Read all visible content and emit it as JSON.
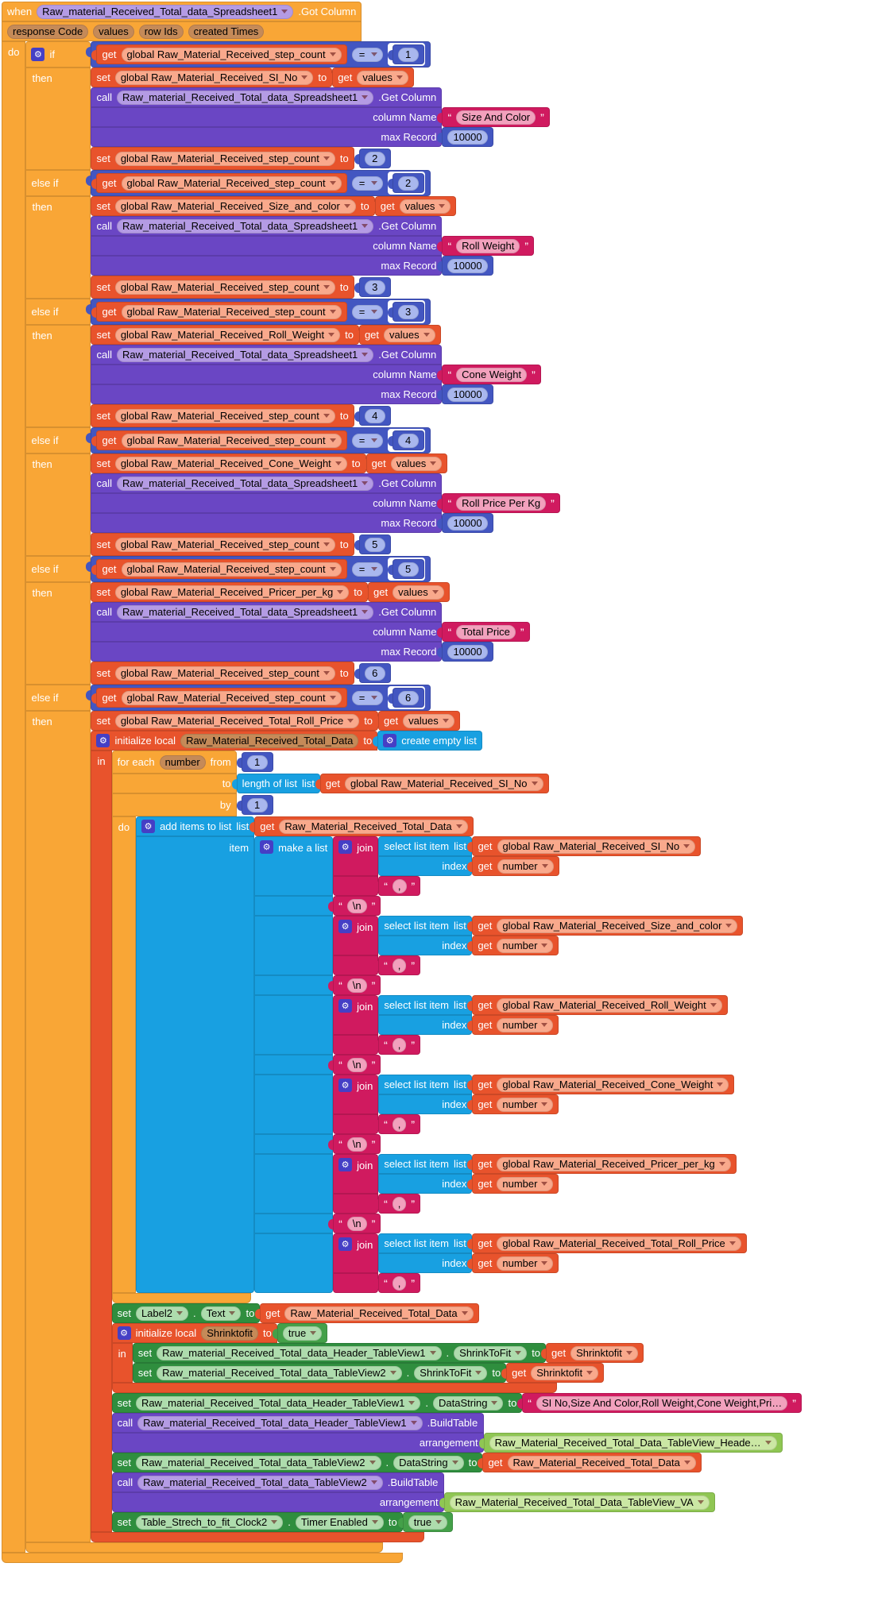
{
  "labels": {
    "when": "when",
    "do": "do",
    "if": "if",
    "else_if": "else if",
    "then": "then",
    "set": "set",
    "to": "to",
    "get": "get",
    "call": "call",
    "in": "in",
    "dot": ".",
    "true": "true",
    "init_local": "initialize local"
  },
  "event": {
    "component": "Raw_material_Received_Total_data_Spreadsheet1",
    "method": ".Got Column",
    "params": [
      "response Code",
      "values",
      "row Ids",
      "created Times"
    ]
  },
  "if_chain": {
    "step_var": "global Raw_Material_Received_step_count",
    "op": "=",
    "branches": [
      {
        "eq": "1",
        "set_var": "global Raw_Material_Received_SI_No",
        "get_value": "values",
        "call": {
          "component": "Raw_material_Received_Total_data_Spreadsheet1",
          "method": ".Get Column",
          "column_name_label": "column Name",
          "column_name": "Size And Color",
          "max_record_label": "max Record",
          "max_record": "10000"
        },
        "set_step": {
          "var": "global Raw_Material_Received_step_count",
          "to": "2"
        }
      },
      {
        "eq": "2",
        "set_var": "global Raw_Material_Received_Size_and_color",
        "get_value": "values",
        "call": {
          "component": "Raw_material_Received_Total_data_Spreadsheet1",
          "method": ".Get Column",
          "column_name_label": "column Name",
          "column_name": "Roll Weight",
          "max_record_label": "max Record",
          "max_record": "10000"
        },
        "set_step": {
          "var": "global Raw_Material_Received_step_count",
          "to": "3"
        }
      },
      {
        "eq": "3",
        "set_var": "global Raw_Material_Received_Roll_Weight",
        "get_value": "values",
        "call": {
          "component": "Raw_material_Received_Total_data_Spreadsheet1",
          "method": ".Get Column",
          "column_name_label": "column Name",
          "column_name": "Cone Weight",
          "max_record_label": "max Record",
          "max_record": "10000"
        },
        "set_step": {
          "var": "global Raw_Material_Received_step_count",
          "to": "4"
        }
      },
      {
        "eq": "4",
        "set_var": "global Raw_Material_Received_Cone_Weight",
        "get_value": "values",
        "call": {
          "component": "Raw_material_Received_Total_data_Spreadsheet1",
          "method": ".Get Column",
          "column_name_label": "column Name",
          "column_name": "Roll Price Per Kg",
          "max_record_label": "max Record",
          "max_record": "10000"
        },
        "set_step": {
          "var": "global Raw_Material_Received_step_count",
          "to": "5"
        }
      },
      {
        "eq": "5",
        "set_var": "global Raw_Material_Received_Pricer_per_kg",
        "get_value": "values",
        "call": {
          "component": "Raw_material_Received_Total_data_Spreadsheet1",
          "method": ".Get Column",
          "column_name_label": "column Name",
          "column_name": "Total Price",
          "max_record_label": "max Record",
          "max_record": "10000"
        },
        "set_step": {
          "var": "global Raw_Material_Received_step_count",
          "to": "6"
        }
      },
      {
        "eq": "6",
        "set_var": "global Raw_Material_Received_Total_Roll_Price",
        "get_value": "values"
      }
    ]
  },
  "final": {
    "local_name": "Raw_Material_Received_Total_Data",
    "create_empty_list": "create empty list",
    "for_each": "for each",
    "number": "number",
    "from": "from",
    "from_value": "1",
    "to": "to",
    "by": "by",
    "by_value": "1",
    "do": "do",
    "to_value_len": {
      "length_of_list": "length of list",
      "list": "list",
      "var": "global Raw_Material_Received_SI_No"
    },
    "add_items": {
      "label": "add items to list",
      "list": "list",
      "var": "Raw_Material_Received_Total_Data",
      "item": "item"
    },
    "make_a_list": "make a list",
    "join": "join",
    "select": {
      "label": "select list item",
      "list": "list",
      "index": "index",
      "index_var": "number"
    },
    "join_vars": [
      "global Raw_Material_Received_SI_No",
      "global Raw_Material_Received_Size_and_color",
      "global Raw_Material_Received_Roll_Weight",
      "global Raw_Material_Received_Cone_Weight",
      "global Raw_Material_Received_Pricer_per_kg",
      "global Raw_Material_Received_Total_Roll_Price"
    ],
    "comma": ",",
    "newline": "\\n"
  },
  "tail": [
    {
      "k": "prop",
      "component": "Label2",
      "prop": "Text",
      "val": {
        "k": "get",
        "v": "Raw_Material_Received_Total_Data"
      }
    },
    {
      "k": "init",
      "name": "Shrinktofit",
      "val": {
        "k": "true"
      },
      "body": [
        {
          "k": "prop",
          "component": "Raw_material_Received_Total_data_Header_TableView1",
          "prop": "ShrinkToFit",
          "val": {
            "k": "get",
            "v": "Shrinktofit"
          }
        },
        {
          "k": "prop",
          "component": "Raw_material_Received_Total_data_TableView2",
          "prop": "ShrinkToFit",
          "val": {
            "k": "get",
            "v": "Shrinktofit"
          }
        }
      ]
    },
    {
      "k": "prop",
      "component": "Raw_material_Received_Total_data_Header_TableView1",
      "prop": "DataString",
      "val": {
        "k": "text",
        "v": "SI No,Size And Color,Roll Weight,Cone Weight,Pri…"
      }
    },
    {
      "k": "callm",
      "component": "Raw_material_Received_Total_data_Header_TableView1",
      "method": ".BuildTable",
      "arg_label": "arrangement",
      "arg": {
        "k": "comp",
        "v": "Raw_Material_Received_Total_Data_TableView_Heade…"
      }
    },
    {
      "k": "prop",
      "component": "Raw_material_Received_Total_data_TableView2",
      "prop": "DataString",
      "val": {
        "k": "get",
        "v": "Raw_Material_Received_Total_Data"
      }
    },
    {
      "k": "callm",
      "component": "Raw_material_Received_Total_data_TableView2",
      "method": ".BuildTable",
      "arg_label": "arrangement",
      "arg": {
        "k": "comp",
        "v": "Raw_Material_Received_Total_Data_TableView_VA"
      }
    },
    {
      "k": "prop",
      "component": "Table_Strech_to_fit_Clock2",
      "prop": "Timer Enabled",
      "val": {
        "k": "true"
      }
    }
  ]
}
